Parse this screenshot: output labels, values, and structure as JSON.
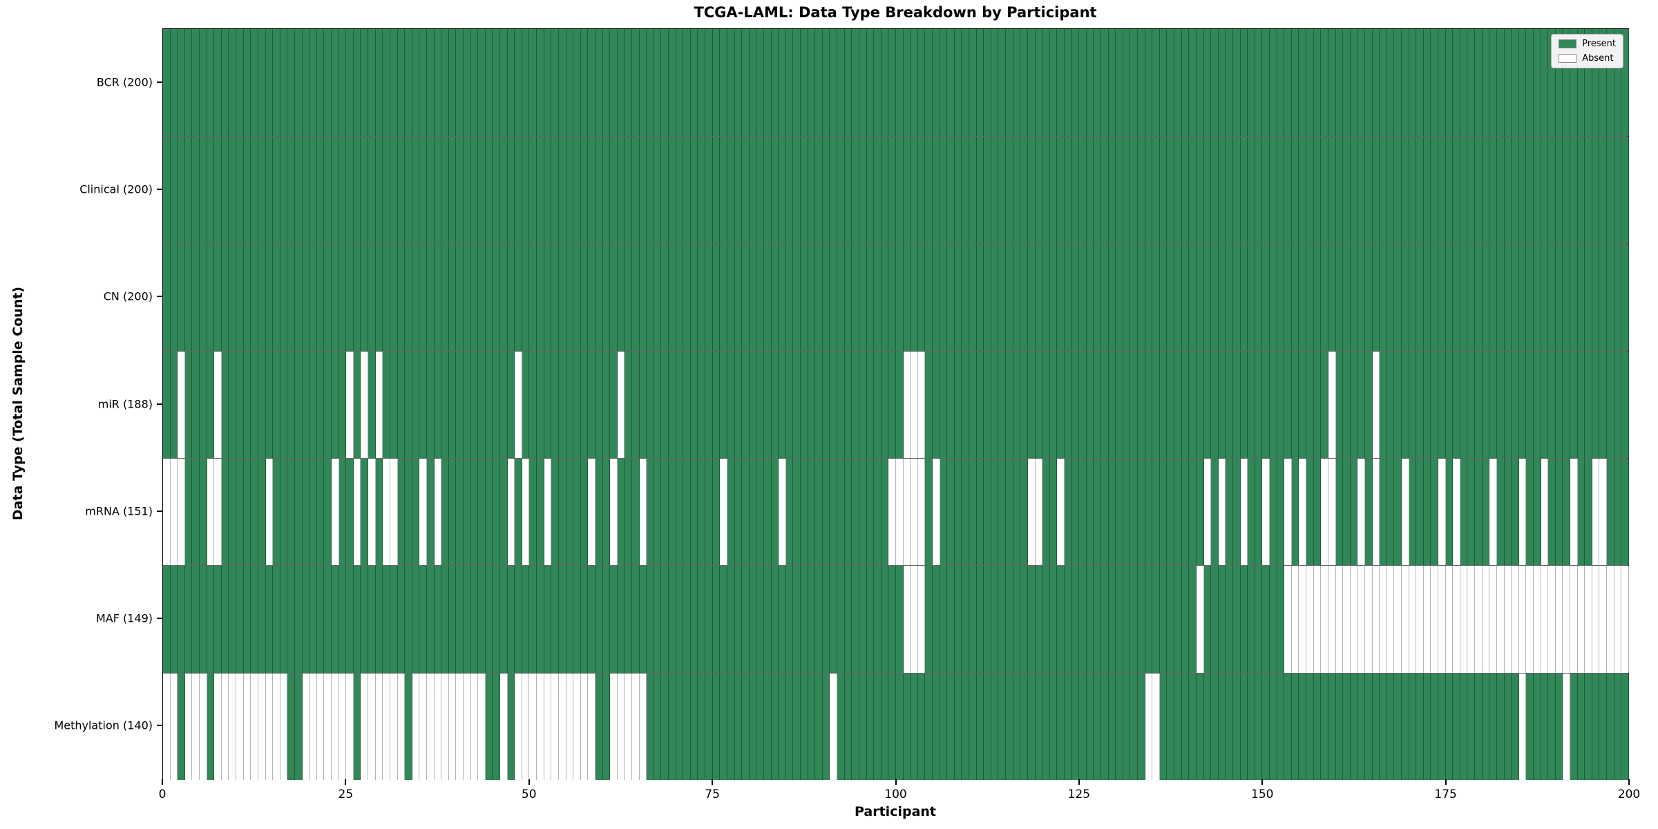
{
  "title": "TCGA-LAML: Data Type Breakdown by Participant",
  "xlabel": "Participant",
  "ylabel": "Data Type (Total Sample Count)",
  "legend": {
    "present_label": "Present",
    "absent_label": "Absent"
  },
  "colors": {
    "present": "#318758",
    "absent": "#ffffff",
    "present_edge": "#1f5c3a",
    "absent_edge": "#b4b4b4"
  },
  "chart_data": {
    "type": "heatmap",
    "title": "TCGA-LAML: Data Type Breakdown by Participant",
    "xlabel": "Participant",
    "ylabel": "Data Type (Total Sample Count)",
    "x_range": [
      0,
      200
    ],
    "n_participants": 200,
    "x_ticks": [
      0,
      25,
      50,
      75,
      100,
      125,
      150,
      175,
      200
    ],
    "legend_position": "upper right",
    "values_legend": {
      "1": "Present",
      "0": "Absent"
    },
    "rows": [
      {
        "label": "BCR (200)",
        "name": "BCR",
        "present_count": 200,
        "absent_participants": []
      },
      {
        "label": "Clinical (200)",
        "name": "Clinical",
        "present_count": 200,
        "absent_participants": []
      },
      {
        "label": "CN (200)",
        "name": "CN",
        "present_count": 200,
        "absent_participants": []
      },
      {
        "label": "miR (188)",
        "name": "miR",
        "present_count": 188,
        "absent_participants": [
          2,
          7,
          25,
          27,
          29,
          48,
          62,
          101,
          102,
          103,
          159,
          165
        ]
      },
      {
        "label": "mRNA (151)",
        "name": "mRNA",
        "present_count": 151,
        "absent_participants": [
          0,
          1,
          2,
          6,
          7,
          14,
          23,
          26,
          28,
          30,
          31,
          35,
          37,
          47,
          49,
          52,
          58,
          61,
          65,
          76,
          84,
          99,
          100,
          101,
          102,
          103,
          105,
          118,
          119,
          122,
          142,
          144,
          147,
          150,
          153,
          155,
          158,
          159,
          163,
          165,
          169,
          174,
          176,
          181,
          185,
          188,
          192,
          195,
          196
        ]
      },
      {
        "label": "MAF (149)",
        "name": "MAF",
        "present_count": 149,
        "absent_participants": [
          101,
          102,
          103,
          141,
          153,
          154,
          155,
          156,
          157,
          158,
          159,
          160,
          161,
          162,
          163,
          164,
          165,
          166,
          167,
          168,
          169,
          170,
          171,
          172,
          173,
          174,
          175,
          176,
          177,
          178,
          179,
          180,
          181,
          182,
          183,
          184,
          185,
          186,
          187,
          188,
          189,
          190,
          191,
          192,
          193,
          194,
          195,
          196,
          197,
          198,
          199
        ]
      },
      {
        "label": "Methylation (140)",
        "name": "Methylation",
        "present_count": 140,
        "absent_participants": [
          0,
          1,
          3,
          4,
          5,
          7,
          8,
          9,
          10,
          11,
          12,
          13,
          14,
          15,
          16,
          19,
          20,
          21,
          22,
          23,
          24,
          25,
          27,
          28,
          29,
          30,
          31,
          32,
          34,
          35,
          36,
          37,
          38,
          39,
          40,
          41,
          42,
          43,
          46,
          48,
          49,
          50,
          51,
          52,
          53,
          54,
          55,
          56,
          57,
          58,
          61,
          62,
          63,
          64,
          65,
          91,
          134,
          135,
          185,
          191
        ]
      }
    ]
  },
  "geometry_note": "7 data-type rows by 200 participant columns; green = present, white = absent"
}
